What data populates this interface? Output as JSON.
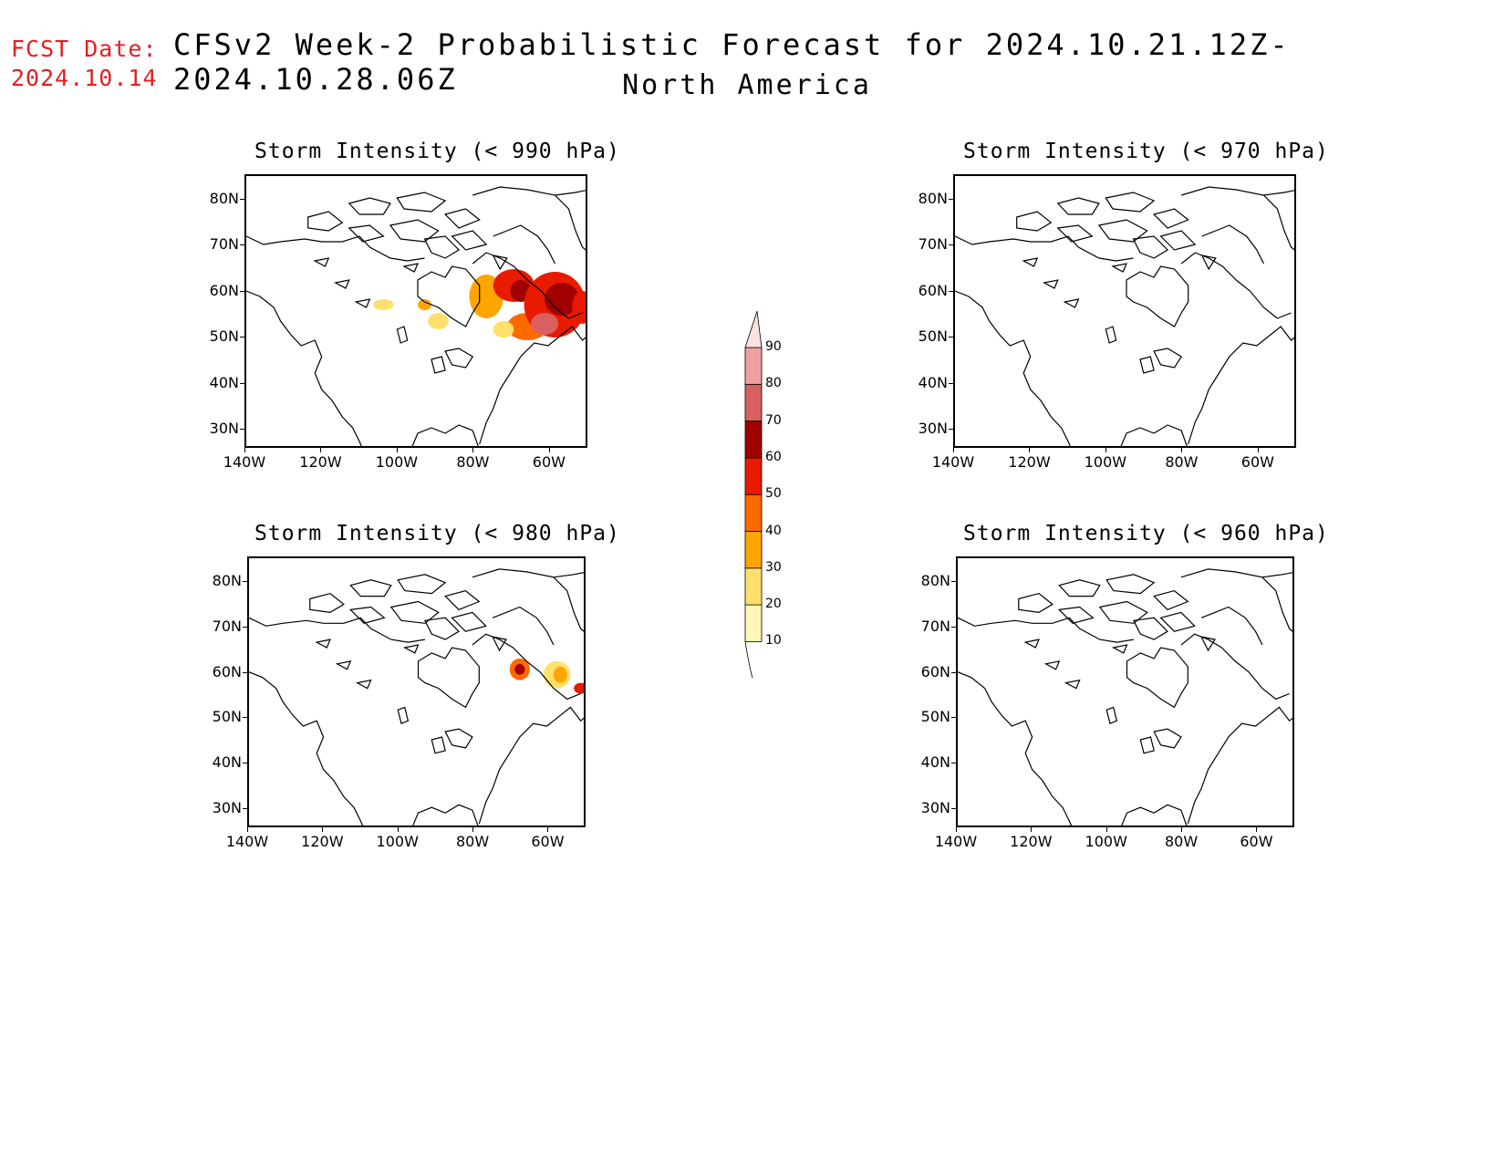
{
  "header": {
    "fcst_label": "FCST Date:",
    "fcst_date": "2024.10.14",
    "title": "CFSv2 Week-2 Probabilistic Forecast for 2024.10.21.12Z-2024.10.28.06Z",
    "subtitle": "North America"
  },
  "panels": [
    {
      "id": "p990",
      "title": "Storm Intensity (< 990 hPa)"
    },
    {
      "id": "p970",
      "title": "Storm Intensity (< 970 hPa)"
    },
    {
      "id": "p980",
      "title": "Storm Intensity (< 980 hPa)"
    },
    {
      "id": "p960",
      "title": "Storm Intensity (< 960 hPa)"
    }
  ],
  "axes": {
    "lat_labels": [
      "80N",
      "70N",
      "60N",
      "50N",
      "40N",
      "30N"
    ],
    "lon_labels": [
      "140W",
      "120W",
      "100W",
      "80W",
      "60W"
    ]
  },
  "colorbar": {
    "levels": [
      "10",
      "20",
      "30",
      "40",
      "50",
      "60",
      "70",
      "80",
      "90"
    ],
    "colors": [
      "#fff7b3",
      "#ffe06a",
      "#ffa500",
      "#ff6a00",
      "#e81a00",
      "#a00000",
      "#d96060",
      "#f0a0a0",
      "#fde0e0"
    ]
  }
}
